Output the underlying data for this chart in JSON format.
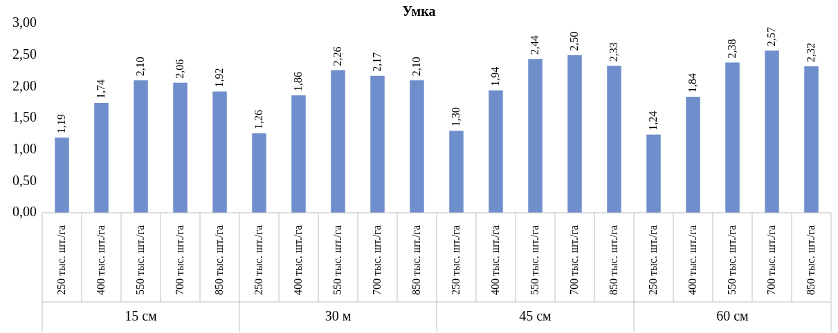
{
  "chart_data": {
    "type": "bar",
    "title": "Умка",
    "categories": [
      "250 тыс. шт./га",
      "400 тыс. шт./га",
      "550 тыс. шт./га",
      "700 тыс. шт./га",
      "850 тыс. шт./га",
      "250 тыс. шт./га",
      "400 тыс. шт./га",
      "550 тыс. шт./га",
      "700 тыс. шт./га",
      "850 тыс. шт./га",
      "250 тыс. шт./га",
      "400 тыс. шт./га",
      "550 тыс. шт./га",
      "700 тыс. шт./га",
      "850 тыс. шт./га",
      "250 тыс. шт./га",
      "400 тыс. шт./га",
      "550 тыс. шт./га",
      "700 тыс. шт./га",
      "850 тыс. шт./га"
    ],
    "values": [
      1.19,
      1.74,
      2.1,
      2.06,
      1.92,
      1.26,
      1.86,
      2.26,
      2.17,
      2.1,
      1.3,
      1.94,
      2.44,
      2.5,
      2.33,
      1.24,
      1.84,
      2.38,
      2.57,
      2.32
    ],
    "color": "#6f8fcc",
    "ylim": [
      0,
      3
    ],
    "yticks": [
      {
        "value": 0,
        "label": "0,00"
      },
      {
        "value": 0.5,
        "label": "0,50"
      },
      {
        "value": 1,
        "label": "1,00"
      },
      {
        "value": 1.5,
        "label": "1,50"
      },
      {
        "value": 2,
        "label": "2,00"
      },
      {
        "value": 2.5,
        "label": "2,50"
      },
      {
        "value": 3,
        "label": "3,00"
      }
    ],
    "annotations": [
      "15 см",
      "30 м",
      "45 см",
      "60 см"
    ],
    "value_labels": [
      "1,19",
      "1,74",
      "2,10",
      "2,06",
      "1,92",
      "1,26",
      "1,86",
      "2,26",
      "2,17",
      "2,10",
      "1,30",
      "1,94",
      "2,44",
      "2,50",
      "2,33",
      "1,24",
      "1,84",
      "2,38",
      "2,57",
      "2,32"
    ],
    "legend": false,
    "grid": false
  }
}
